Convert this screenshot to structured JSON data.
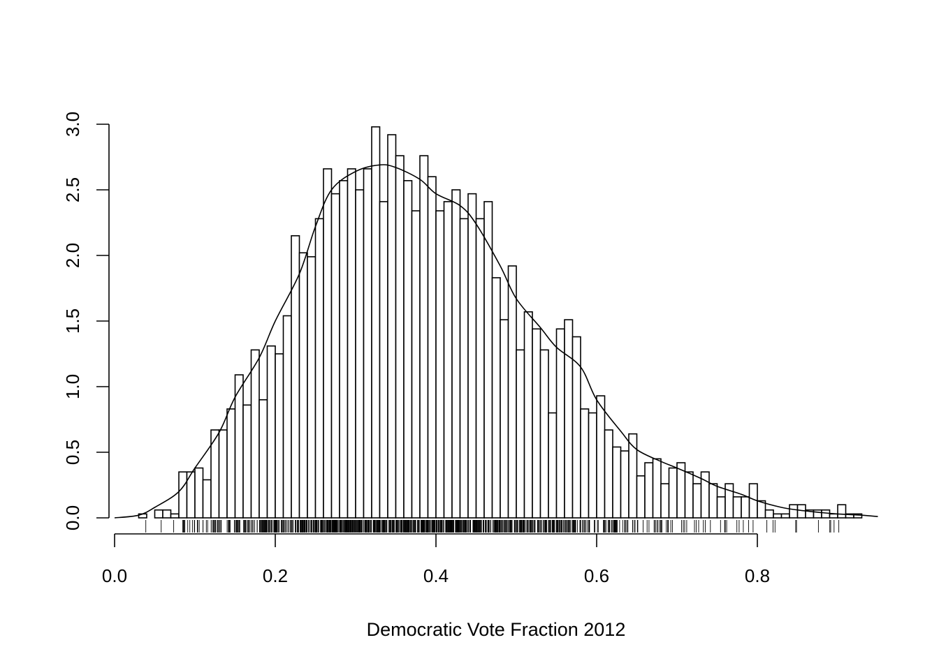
{
  "chart_data": {
    "type": "histogram",
    "title": "",
    "xlabel": "Democratic Vote Fraction 2012",
    "ylabel": "",
    "xlim": [
      0.0,
      0.95
    ],
    "ylim": [
      0.0,
      3.0
    ],
    "x_ticks": [
      0.0,
      0.2,
      0.4,
      0.6,
      0.8
    ],
    "x_tick_labels": [
      "0.0",
      "0.2",
      "0.4",
      "0.6",
      "0.8"
    ],
    "y_ticks": [
      0.0,
      0.5,
      1.0,
      1.5,
      2.0,
      2.5,
      3.0
    ],
    "y_tick_labels": [
      "0.0",
      "0.5",
      "1.0",
      "1.5",
      "2.0",
      "2.5",
      "3.0"
    ],
    "grid": false,
    "legend": "none",
    "bin_width": 0.01,
    "bin_start": 0.03,
    "bar_heights": [
      0.03,
      0.0,
      0.06,
      0.06,
      0.03,
      0.35,
      0.35,
      0.38,
      0.29,
      0.67,
      0.67,
      0.83,
      1.09,
      0.86,
      1.28,
      0.9,
      1.31,
      1.25,
      1.54,
      2.15,
      2.02,
      1.99,
      2.28,
      2.66,
      2.47,
      2.57,
      2.66,
      2.5,
      2.66,
      2.98,
      2.41,
      2.92,
      2.76,
      2.57,
      2.34,
      2.76,
      2.6,
      2.34,
      2.41,
      2.5,
      2.28,
      2.47,
      2.28,
      2.41,
      1.83,
      1.51,
      1.92,
      1.28,
      1.57,
      1.44,
      1.28,
      0.8,
      1.44,
      1.51,
      1.38,
      0.83,
      0.8,
      0.93,
      0.67,
      0.54,
      0.51,
      0.64,
      0.32,
      0.42,
      0.45,
      0.26,
      0.38,
      0.42,
      0.35,
      0.26,
      0.35,
      0.26,
      0.16,
      0.26,
      0.16,
      0.16,
      0.26,
      0.13,
      0.06,
      0.03,
      0.03,
      0.1,
      0.1,
      0.06,
      0.06,
      0.06,
      0.03,
      0.1,
      0.03,
      0.03
    ],
    "density_curve": {
      "x": [
        0.0,
        0.03,
        0.05,
        0.08,
        0.1,
        0.13,
        0.15,
        0.18,
        0.2,
        0.23,
        0.25,
        0.27,
        0.3,
        0.33,
        0.35,
        0.38,
        0.4,
        0.43,
        0.45,
        0.48,
        0.5,
        0.53,
        0.55,
        0.58,
        0.6,
        0.63,
        0.65,
        0.68,
        0.7,
        0.73,
        0.75,
        0.78,
        0.8,
        0.83,
        0.85,
        0.88,
        0.9,
        0.93,
        0.95
      ],
      "y": [
        0.0,
        0.02,
        0.08,
        0.2,
        0.38,
        0.65,
        0.92,
        1.22,
        1.5,
        1.86,
        2.22,
        2.5,
        2.64,
        2.69,
        2.67,
        2.58,
        2.47,
        2.38,
        2.24,
        1.92,
        1.67,
        1.45,
        1.3,
        1.15,
        0.9,
        0.66,
        0.52,
        0.43,
        0.38,
        0.3,
        0.24,
        0.18,
        0.13,
        0.08,
        0.06,
        0.04,
        0.03,
        0.02,
        0.01
      ]
    },
    "rug": "dense vertical ticks of individual observations between 0.03 and 0.92, most concentrated from 0.1 to 0.8"
  }
}
